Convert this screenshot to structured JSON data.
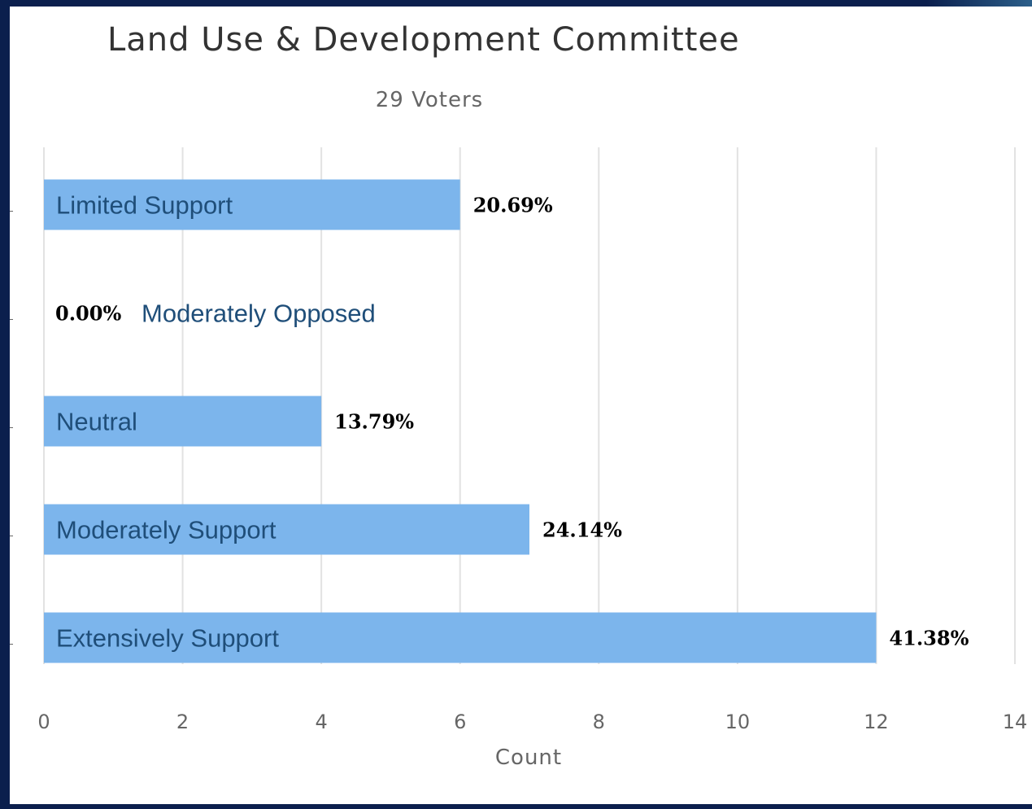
{
  "chart_data": {
    "type": "bar",
    "orientation": "horizontal",
    "title": "Land Use & Development Committee",
    "subtitle": "29 Voters",
    "xlabel": "Count",
    "xlim": [
      0,
      14
    ],
    "xticks": [
      0,
      2,
      4,
      6,
      8,
      10,
      12,
      14
    ],
    "grid": true,
    "bar_color": "#7cb5ec",
    "categories": [
      "Limited Support",
      "Moderately Opposed",
      "Neutral",
      "Moderately Support",
      "Extensively Support"
    ],
    "values": [
      6,
      0,
      4,
      7,
      12
    ],
    "data_labels": [
      "20.69%",
      "0.00%",
      "13.79%",
      "24.14%",
      "41.38%"
    ]
  }
}
